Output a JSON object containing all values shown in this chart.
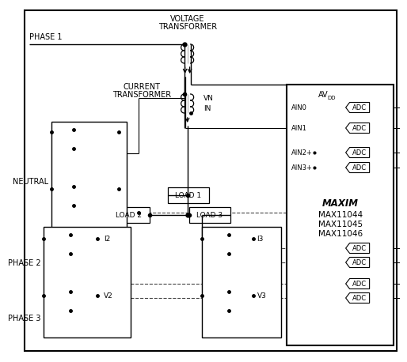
{
  "bg_color": "#ffffff",
  "phase1_label": "PHASE 1",
  "phase2_label": "PHASE 2",
  "phase3_label": "PHASE 3",
  "neutral_label": "NEUTRAL",
  "vt_label1": "VOLTAGE",
  "vt_label2": "TRANSFORMER",
  "ct_label1": "CURRENT",
  "ct_label2": "TRANSFORMER",
  "ain0_label": "AIN0",
  "ain1_label": "AIN1",
  "ain2_label": "AIN2+",
  "ain3_label": "AIN3+",
  "avdd_label": "AV",
  "avdd_sub": "DD",
  "load1_label": "LOAD 1",
  "load2_label": "LOAD 2",
  "load3_label": "LOAD 3",
  "vn_label": "VN",
  "in_label": "IN",
  "v2_label": "V2",
  "i2_label": "I2",
  "v3_label": "V3",
  "i3_label": "I3",
  "maxim_label": "MAXIM",
  "max1_label": "MAX11044",
  "max2_label": "MAX11045",
  "max3_label": "MAX11046"
}
